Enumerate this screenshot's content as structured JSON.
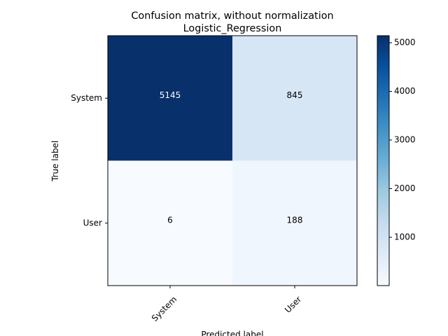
{
  "chart_data": {
    "type": "heatmap",
    "title_lines": [
      "Confusion matrix, without normalization",
      "Logistic_Regression"
    ],
    "xlabel": "Predicted label",
    "ylabel": "True label",
    "x_categories": [
      "System",
      "User"
    ],
    "y_categories": [
      "System",
      "User"
    ],
    "values": [
      [
        5145,
        845
      ],
      [
        6,
        188
      ]
    ],
    "colormap": "Blues",
    "colorbar": {
      "ticks": [
        1000,
        2000,
        3000,
        4000,
        5000
      ],
      "vmin": 6,
      "vmax": 5145
    },
    "grid": false
  }
}
